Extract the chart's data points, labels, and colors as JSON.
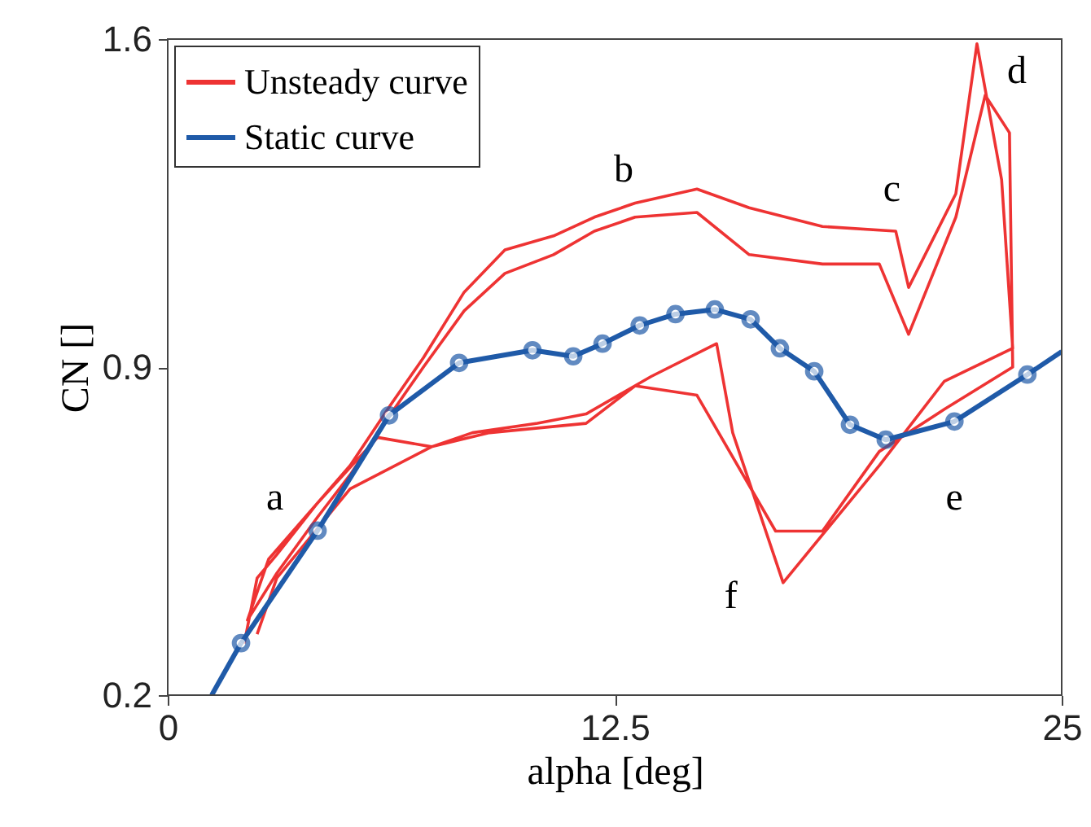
{
  "chart_data": {
    "type": "line",
    "xlabel": "alpha [deg]",
    "ylabel": "CN []",
    "xlim": [
      0,
      25
    ],
    "ylim": [
      0.2,
      1.6
    ],
    "xticks": [
      0,
      12.5,
      25
    ],
    "yticks": [
      0.2,
      0.9,
      1.6
    ],
    "grid": false,
    "legend": "top left",
    "line_style": "solid",
    "series": [
      {
        "name": "Unsteady curve",
        "color": "#ee3333",
        "marker": "none",
        "x": [
          2.14,
          2.5,
          3.05,
          4.19,
          5.1,
          6.24,
          7.15,
          8.29,
          9.43,
          10.79,
          11.93,
          13.07,
          14.8,
          16.26,
          18.31,
          20.36,
          20.72,
          22.04,
          22.63,
          23.32,
          23.63,
          21.72,
          19.9,
          17.21,
          15.8,
          15.35,
          13.52,
          11.7,
          10.34,
          8.52,
          7.38,
          5.87,
          4.19,
          2.82,
          2.23,
          3.05,
          4.19,
          5.1,
          6.24,
          7.15,
          8.29,
          9.43,
          10.79,
          11.93,
          13.07,
          14.8,
          16.26,
          18.31,
          19.9,
          20.72,
          22.04,
          22.86,
          23.54,
          23.63,
          21.72,
          19.9,
          18.31,
          17.0,
          14.8,
          13.07,
          11.7,
          9.0,
          7.38,
          5.1,
          3.05,
          2.5
        ],
        "values": [
          0.31,
          0.45,
          0.5,
          0.61,
          0.69,
          0.82,
          0.92,
          1.06,
          1.15,
          1.18,
          1.22,
          1.25,
          1.28,
          1.24,
          1.2,
          1.19,
          1.07,
          1.27,
          1.59,
          1.3,
          0.94,
          0.87,
          0.69,
          0.44,
          0.76,
          0.95,
          0.88,
          0.8,
          0.78,
          0.76,
          0.73,
          0.75,
          0.61,
          0.49,
          0.36,
          0.46,
          0.58,
          0.67,
          0.8,
          0.9,
          1.02,
          1.1,
          1.14,
          1.19,
          1.22,
          1.23,
          1.14,
          1.12,
          1.12,
          0.97,
          1.22,
          1.48,
          1.4,
          0.9,
          0.81,
          0.72,
          0.55,
          0.55,
          0.84,
          0.86,
          0.78,
          0.76,
          0.73,
          0.64,
          0.45,
          0.33
        ]
      },
      {
        "name": "Static curve",
        "color": "#1f5aa8",
        "marker": "circle",
        "x": [
          2.05,
          4.19,
          6.19,
          8.15,
          10.2,
          11.34,
          12.16,
          13.2,
          14.2,
          15.3,
          16.3,
          17.12,
          18.08,
          19.08,
          20.08,
          22.0,
          24.04
        ],
        "values": [
          0.311,
          0.551,
          0.797,
          0.909,
          0.936,
          0.923,
          0.95,
          0.989,
          1.013,
          1.023,
          1.002,
          0.94,
          0.891,
          0.777,
          0.745,
          0.784,
          0.884
        ]
      },
      {
        "color": "#1f5aa8",
        "marker": "none",
        "x": [
          1.23,
          2.05,
          null,
          24.04,
          25
        ],
        "values": [
          0.2,
          0.311,
          null,
          0.884,
          0.933
        ]
      }
    ],
    "annotations": [
      "a",
      "b",
      "c",
      "d",
      "e",
      "f"
    ]
  }
}
